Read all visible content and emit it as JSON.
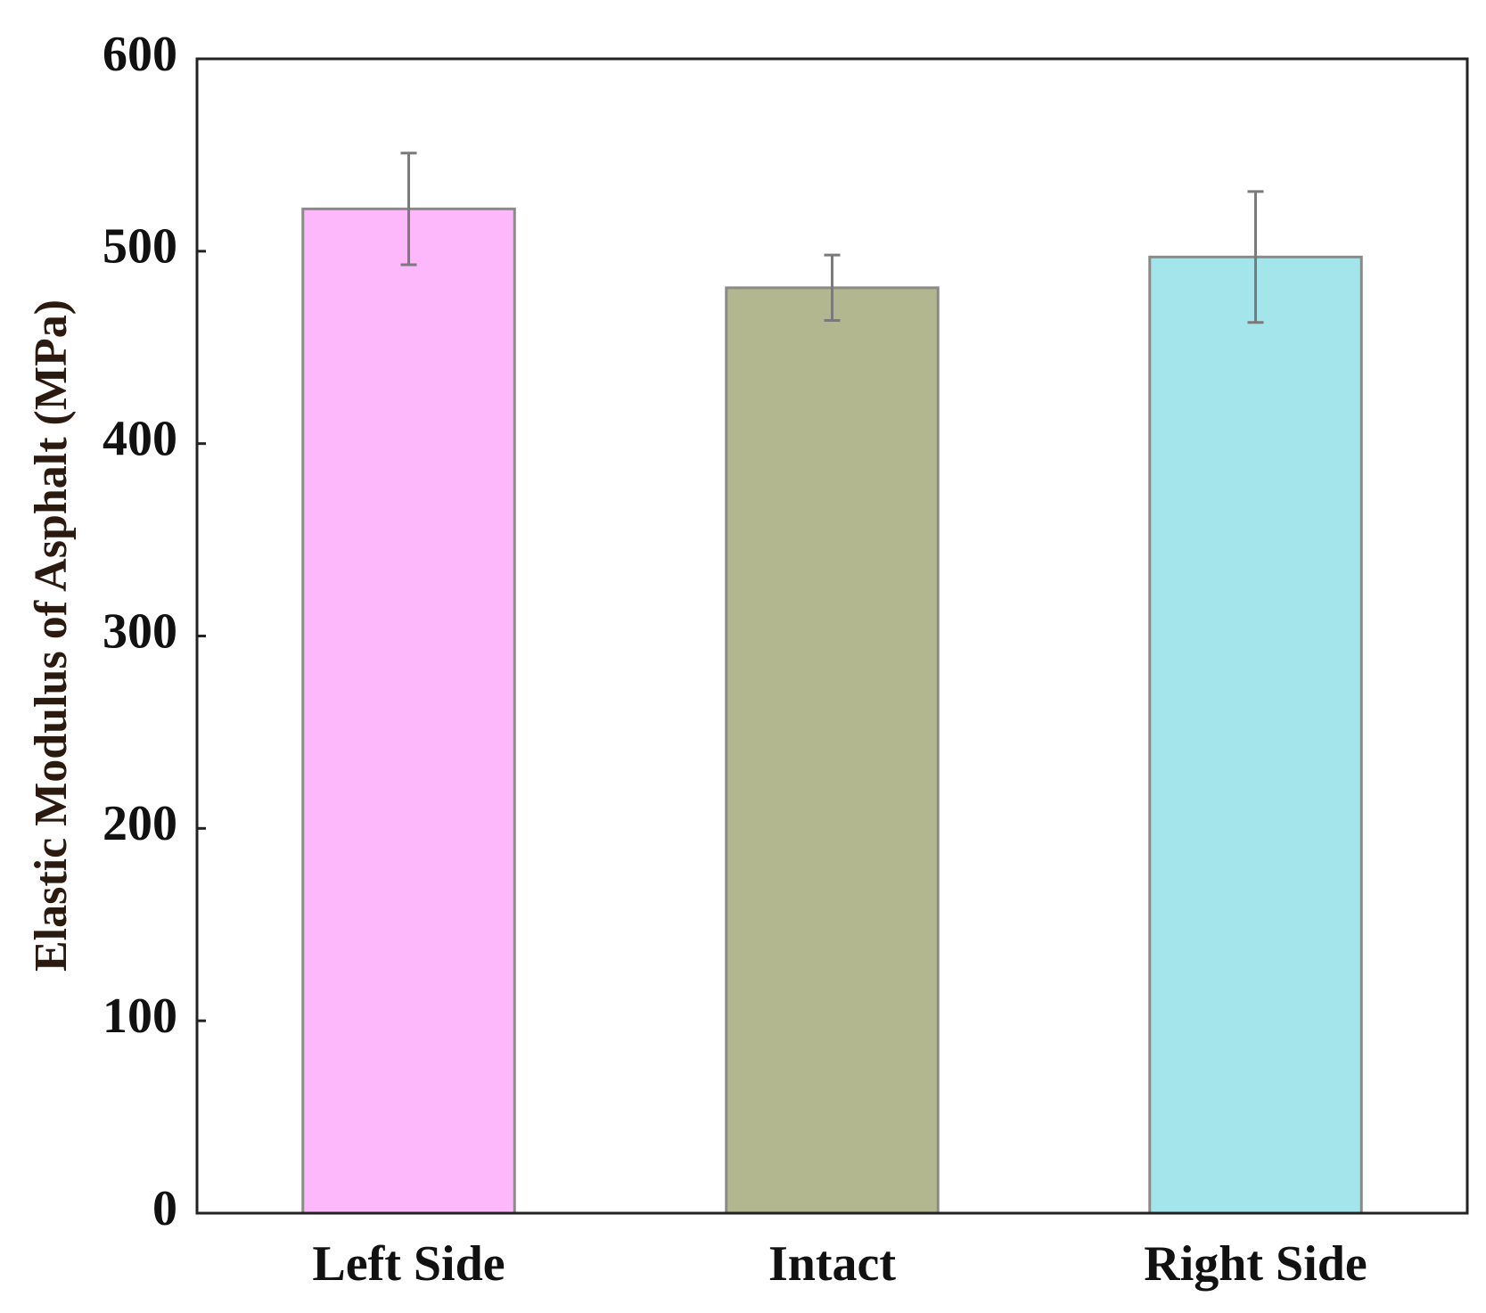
{
  "chart_data": {
    "type": "bar",
    "y_label": "Elastic Modulus of Asphalt (MPa)",
    "categories": [
      "Left Side",
      "Intact",
      "Right Side"
    ],
    "values": [
      522,
      481,
      497
    ],
    "errors": [
      29,
      17,
      34
    ],
    "colors": [
      "#fdb8fb",
      "#b3b78f",
      "#a3e5ea"
    ],
    "ylim": [
      0,
      600
    ],
    "yticks": [
      0,
      100,
      200,
      300,
      400,
      500,
      600
    ]
  }
}
